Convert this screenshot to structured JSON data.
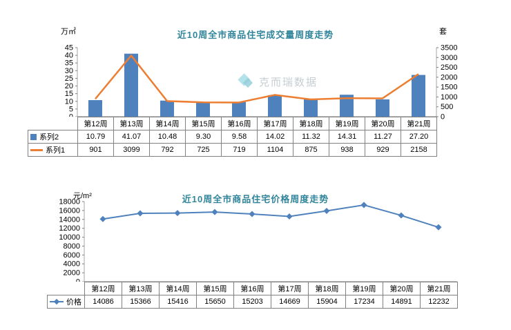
{
  "charts": {
    "volume": {
      "title": "近10周全市商品住宅成交量周度走势",
      "left_unit": "万㎡",
      "right_unit": "套"
    },
    "price": {
      "title": "近10周全市商品住宅价格周度走势",
      "unit": "元/m²"
    }
  },
  "watermark": {
    "text": "克而瑞数据"
  },
  "colors": {
    "title_teal": "#31859B",
    "bar_blue": "#4F81BD",
    "line_orange": "#ED7D31",
    "price_blue": "#4F81BD",
    "table_border": "#808080"
  },
  "chart_data": [
    {
      "type": "bar",
      "title": "近10周全市商品住宅成交量周度走势",
      "categories": [
        "第12周",
        "第13周",
        "第14周",
        "第15周",
        "第16周",
        "第17周",
        "第18周",
        "第19周",
        "第20周",
        "第21周"
      ],
      "series": [
        {
          "name": "系列2",
          "type": "bar",
          "axis": "left",
          "color": "#4F81BD",
          "legend_icon": "blue-square-icon",
          "decimals": 2,
          "values": [
            10.79,
            41.07,
            10.48,
            9.3,
            9.58,
            14.02,
            11.32,
            14.31,
            11.27,
            27.2
          ]
        },
        {
          "name": "系列1",
          "type": "line",
          "axis": "right",
          "color": "#ED7D31",
          "legend_icon": "orange-line-icon",
          "decimals": 0,
          "values": [
            901,
            3099,
            792,
            725,
            719,
            1104,
            875,
            938,
            929,
            2158
          ]
        }
      ],
      "left_axis": {
        "label": "万㎡",
        "min": 0,
        "max": 45,
        "step": 5
      },
      "right_axis": {
        "label": "套",
        "min": 0,
        "max": 3500,
        "step": 500
      },
      "legend_position": "table-left",
      "grid": false
    },
    {
      "type": "line",
      "title": "近10周全市商品住宅价格周度走势",
      "categories": [
        "第12周",
        "第13周",
        "第14周",
        "第15周",
        "第16周",
        "第17周",
        "第18周",
        "第19周",
        "第20周",
        "第21周"
      ],
      "series": [
        {
          "name": "价格",
          "type": "line",
          "axis": "left",
          "color": "#4F81BD",
          "marker": "diamond",
          "legend_icon": "line-diamond-icon",
          "decimals": 0,
          "values": [
            14086,
            15366,
            15416,
            15650,
            15203,
            14669,
            15904,
            17234,
            14891,
            12232
          ]
        }
      ],
      "left_axis": {
        "label": "元/m²",
        "min": 0,
        "max": 18000,
        "step": 2000
      },
      "legend_position": "table-left",
      "grid": false
    }
  ]
}
